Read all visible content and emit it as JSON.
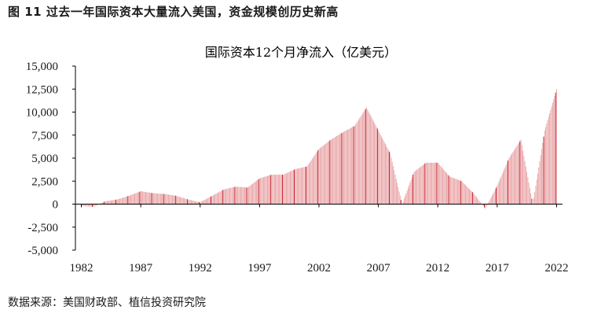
{
  "figure_title": "图 11 过去一年国际资本大量流入美国，资金规模创历史新高",
  "source": "数据来源：美国财政部、植信投资研究院",
  "colors": {
    "bar_light": "#e8a1a3",
    "bar_dark": "#c0000d",
    "axis": "#000000"
  },
  "chart_data": {
    "type": "bar",
    "title": "国际资本12个月净流入（亿美元）",
    "xlabel": "",
    "ylabel": "",
    "ylim": [
      -5000,
      15000
    ],
    "yticks": [
      -5000,
      -2500,
      0,
      2500,
      5000,
      7500,
      10000,
      12500,
      15000
    ],
    "ytick_labels": [
      "-5,000",
      "-2,500",
      "0",
      "2,500",
      "5,000",
      "7,500",
      "10,000",
      "12,500",
      "15,000"
    ],
    "xticks": [
      1982,
      1987,
      1992,
      1997,
      2002,
      2007,
      2012,
      2017,
      2022
    ],
    "xlim": [
      1981.5,
      2022.5
    ],
    "highlight": "December bars drawn darker",
    "series": [
      {
        "frequency": "annual anchor points, monthly bars interpolated",
        "x": [
          1982,
          1983,
          1984,
          1985,
          1986,
          1987,
          1988,
          1989,
          1990,
          1991,
          1992,
          1993,
          1994,
          1995,
          1996,
          1997,
          1998,
          1999,
          2000,
          2001,
          2002,
          2003,
          2004,
          2005,
          2006,
          2007,
          2008,
          2009,
          2010,
          2011,
          2012,
          2013,
          2014,
          2015,
          2016,
          2017,
          2018,
          2019,
          2020,
          2021,
          2022
        ],
        "values": [
          -200,
          -300,
          300,
          500,
          900,
          1400,
          1200,
          1100,
          900,
          500,
          200,
          900,
          1600,
          1900,
          1800,
          2800,
          3200,
          3200,
          3800,
          4100,
          6000,
          7000,
          7800,
          8500,
          10500,
          8000,
          5500,
          0,
          3500,
          4500,
          4500,
          3000,
          2500,
          1200,
          -500,
          2000,
          5000,
          7000,
          0,
          8000,
          12500
        ]
      }
    ]
  }
}
